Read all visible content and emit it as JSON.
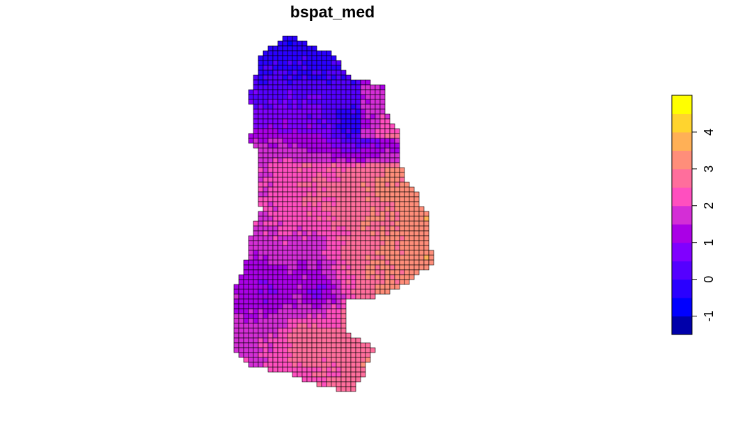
{
  "title": "bspat_med",
  "legend": {
    "ticks": [
      "-1",
      "0",
      "1",
      "2",
      "3",
      "4"
    ],
    "tick_values": [
      -1,
      0,
      1,
      2,
      3,
      4
    ],
    "range": [
      -1.5,
      4.5
    ],
    "bins": [
      {
        "from": -1.5,
        "to": -1.0,
        "color": "#0000AA"
      },
      {
        "from": -1.0,
        "to": -0.5,
        "color": "#0000FF"
      },
      {
        "from": -0.5,
        "to": 0.0,
        "color": "#2A00FF"
      },
      {
        "from": 0.0,
        "to": 0.5,
        "color": "#5500FF"
      },
      {
        "from": 0.5,
        "to": 1.0,
        "color": "#8000FF"
      },
      {
        "from": 1.0,
        "to": 1.5,
        "color": "#AA00E6"
      },
      {
        "from": 1.5,
        "to": 2.0,
        "color": "#D42ED6"
      },
      {
        "from": 2.0,
        "to": 2.5,
        "color": "#FF4FBF"
      },
      {
        "from": 2.5,
        "to": 3.0,
        "color": "#FF6E9C"
      },
      {
        "from": 3.0,
        "to": 3.5,
        "color": "#FF8E7A"
      },
      {
        "from": 3.5,
        "to": 4.0,
        "color": "#FFB056"
      },
      {
        "from": 4.0,
        "to": 4.5,
        "color": "#FFD42E"
      },
      {
        "from": 4.5,
        "to": 5.0,
        "color": "#FFFF00"
      }
    ]
  },
  "colors": {
    "cell_border": "#000000",
    "background": "#FFFFFF"
  }
}
